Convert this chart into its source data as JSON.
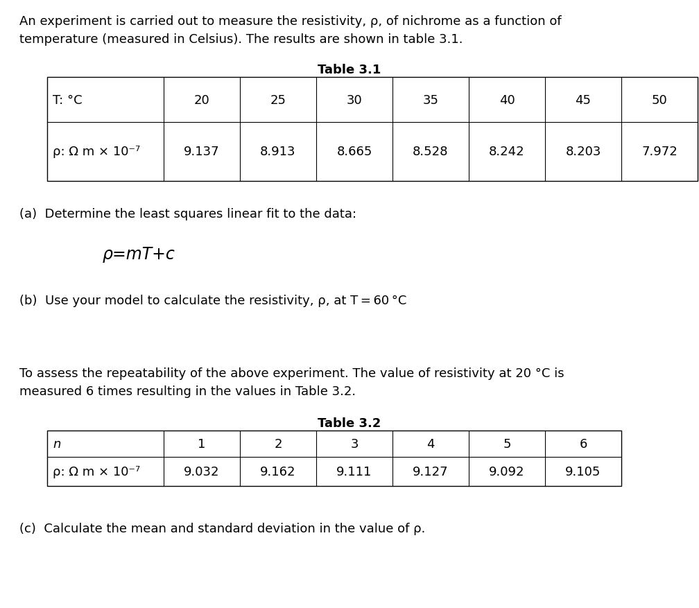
{
  "intro_line1": "An experiment is carried out to measure the resistivity, ρ, of nichrome as a function of",
  "intro_line2": "temperature (measured in Celsius). The results are shown in table 3.1.",
  "table1_title": "Table 3.1",
  "table1_col0": [
    "T: °C",
    "ρ: Ω m × 10⁻⁷"
  ],
  "table1_cols": [
    [
      "20",
      "9.137"
    ],
    [
      "25",
      "8.913"
    ],
    [
      "30",
      "8.665"
    ],
    [
      "35",
      "8.528"
    ],
    [
      "40",
      "8.242"
    ],
    [
      "45",
      "8.203"
    ],
    [
      "50",
      "7.972"
    ]
  ],
  "part_a_text": "(a)  Determine the least squares linear fit to the data:",
  "formula": "ρ=mT+c",
  "part_b_text": "(b)  Use your model to calculate the resistivity, ρ, at T = 60 °C",
  "repeat_line1": "To assess the repeatability of the above experiment. The value of resistivity at 20 °C is",
  "repeat_line2": "measured 6 times resulting in the values in Table 3.2.",
  "table2_title": "Table 3.2",
  "table2_col0": [
    "n",
    "ρ: Ω m × 10⁻⁷"
  ],
  "table2_cols": [
    [
      "1",
      "9.032"
    ],
    [
      "2",
      "9.162"
    ],
    [
      "3",
      "9.111"
    ],
    [
      "4",
      "9.127"
    ],
    [
      "5",
      "9.092"
    ],
    [
      "6",
      "9.105"
    ]
  ],
  "part_c_text": "(c)  Calculate the mean and standard deviation in the value of ρ.",
  "bg_color": "#ffffff",
  "text_color": "#000000",
  "body_fontsize": 13,
  "table_fontsize": 13,
  "formula_fontsize": 15
}
